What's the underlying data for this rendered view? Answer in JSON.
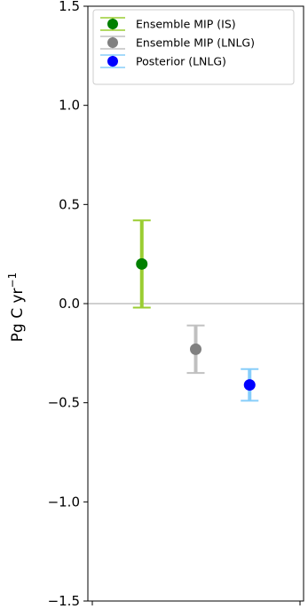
{
  "chart_data": {
    "type": "errorbar",
    "ylabel": "Pg C yr",
    "ylabel_superscript": "−1",
    "ylim": [
      -1.5,
      1.5
    ],
    "yticks": [
      {
        "value": 1.5,
        "label": "1.5"
      },
      {
        "value": 1.0,
        "label": "1.0"
      },
      {
        "value": 0.5,
        "label": "0.5"
      },
      {
        "value": 0.0,
        "label": "0.0"
      },
      {
        "value": -0.5,
        "label": "−0.5"
      },
      {
        "value": -1.0,
        "label": "−1.0"
      },
      {
        "value": -1.5,
        "label": "−1.5"
      }
    ],
    "xlim": [
      0,
      4
    ],
    "reference_line": 0,
    "reference_line_color": "#808080",
    "legend_position": "top",
    "series": [
      {
        "name": "Ensemble MIP (IS)",
        "x": 1,
        "y": 0.2,
        "ymin": -0.02,
        "ymax": 0.42,
        "marker_color": "#008000",
        "bar_color": "#9acd32"
      },
      {
        "name": "Ensemble MIP (LNLG)",
        "x": 2,
        "y": -0.23,
        "ymin": -0.35,
        "ymax": -0.11,
        "marker_color": "#808080",
        "bar_color": "#c0c0c0"
      },
      {
        "name": "Posterior (LNLG)",
        "x": 3,
        "y": -0.41,
        "ymin": -0.49,
        "ymax": -0.33,
        "marker_color": "#0000ff",
        "bar_color": "#87cefa"
      }
    ]
  }
}
